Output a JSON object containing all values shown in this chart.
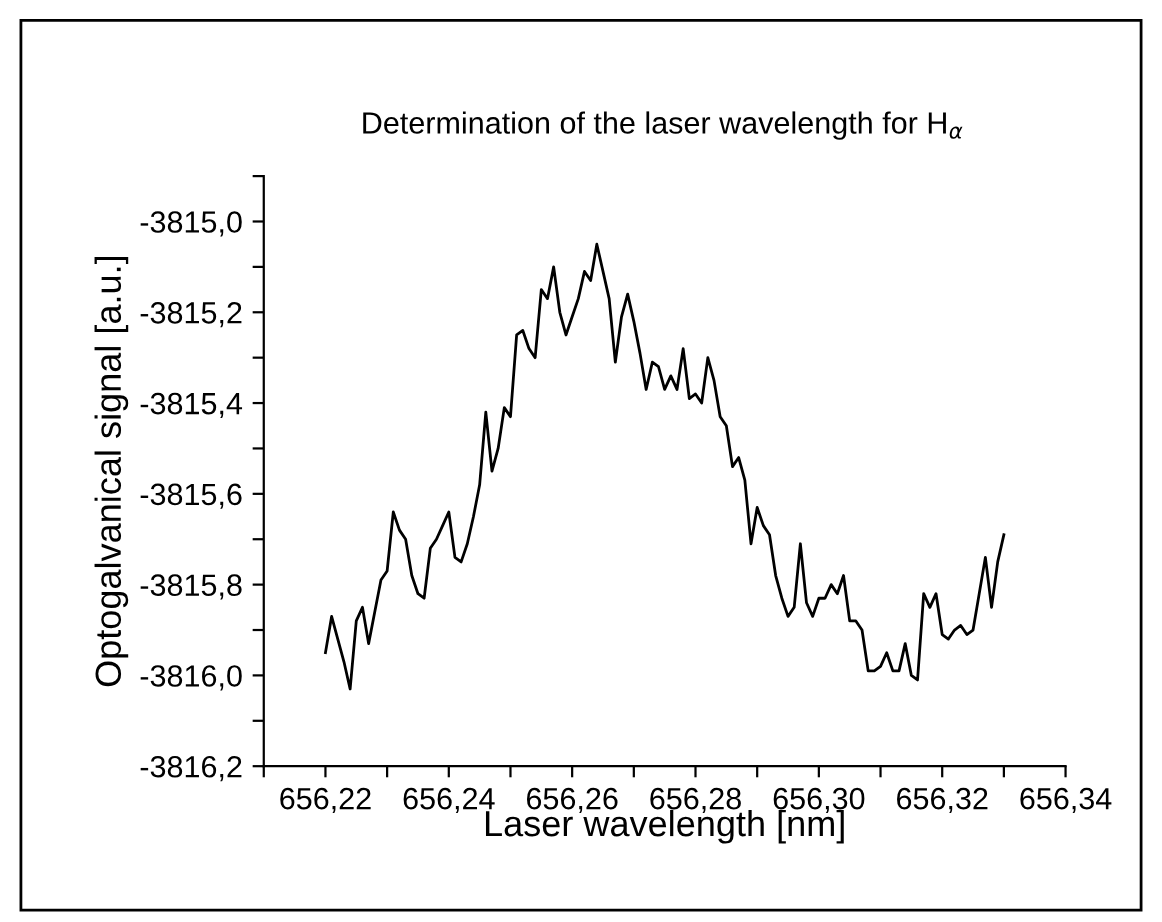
{
  "chart_data": {
    "type": "line",
    "title": "Determination of the laser wavelength for H$_{α}$",
    "xlabel": "Laser wavelength [nm]",
    "ylabel": "Optogalvanical signal [a.u.]",
    "x": [
      656.22,
      656.221,
      656.222,
      656.223,
      656.224,
      656.225,
      656.226,
      656.227,
      656.228,
      656.229,
      656.23,
      656.231,
      656.232,
      656.233,
      656.234,
      656.235,
      656.236,
      656.237,
      656.238,
      656.239,
      656.24,
      656.241,
      656.242,
      656.243,
      656.244,
      656.245,
      656.246,
      656.247,
      656.248,
      656.249,
      656.25,
      656.251,
      656.252,
      656.253,
      656.254,
      656.255,
      656.256,
      656.257,
      656.258,
      656.259,
      656.26,
      656.261,
      656.262,
      656.263,
      656.264,
      656.265,
      656.266,
      656.267,
      656.268,
      656.269,
      656.27,
      656.271,
      656.272,
      656.273,
      656.274,
      656.275,
      656.276,
      656.277,
      656.278,
      656.279,
      656.28,
      656.281,
      656.282,
      656.283,
      656.284,
      656.285,
      656.286,
      656.287,
      656.288,
      656.289,
      656.29,
      656.291,
      656.292,
      656.293,
      656.294,
      656.295,
      656.296,
      656.297,
      656.298,
      656.299,
      656.3,
      656.301,
      656.302,
      656.303,
      656.304,
      656.305,
      656.306,
      656.307,
      656.308,
      656.309,
      656.31,
      656.311,
      656.312,
      656.313,
      656.314,
      656.315,
      656.316,
      656.317,
      656.318,
      656.319,
      656.32,
      656.321,
      656.322,
      656.323,
      656.324,
      656.325,
      656.326,
      656.327,
      656.328,
      656.329,
      656.33
    ],
    "series": [
      {
        "color": "#000000",
        "values": [
          -3815.95,
          -3815.87,
          -3815.92,
          -3815.97,
          -3816.03,
          -3815.88,
          -3815.85,
          -3815.93,
          -3815.86,
          -3815.79,
          -3815.77,
          -3815.64,
          -3815.68,
          -3815.7,
          -3815.78,
          -3815.82,
          -3815.83,
          -3815.72,
          -3815.7,
          -3815.67,
          -3815.64,
          -3815.74,
          -3815.75,
          -3815.71,
          -3815.65,
          -3815.58,
          -3815.42,
          -3815.55,
          -3815.5,
          -3815.41,
          -3815.43,
          -3815.25,
          -3815.24,
          -3815.28,
          -3815.3,
          -3815.15,
          -3815.17,
          -3815.1,
          -3815.2,
          -3815.25,
          -3815.21,
          -3815.17,
          -3815.11,
          -3815.13,
          -3815.05,
          -3815.11,
          -3815.17,
          -3815.31,
          -3815.21,
          -3815.16,
          -3815.22,
          -3815.29,
          -3815.37,
          -3815.31,
          -3815.32,
          -3815.37,
          -3815.34,
          -3815.37,
          -3815.28,
          -3815.39,
          -3815.38,
          -3815.4,
          -3815.3,
          -3815.35,
          -3815.43,
          -3815.45,
          -3815.54,
          -3815.52,
          -3815.57,
          -3815.71,
          -3815.63,
          -3815.67,
          -3815.69,
          -3815.78,
          -3815.83,
          -3815.87,
          -3815.85,
          -3815.71,
          -3815.84,
          -3815.87,
          -3815.83,
          -3815.83,
          -3815.8,
          -3815.82,
          -3815.78,
          -3815.88,
          -3815.88,
          -3815.9,
          -3815.99,
          -3815.99,
          -3815.98,
          -3815.95,
          -3815.99,
          -3815.99,
          -3815.93,
          -3816.0,
          -3816.01,
          -3815.82,
          -3815.85,
          -3815.82,
          -3815.91,
          -3815.92,
          -3815.9,
          -3815.89,
          -3815.91,
          -3815.9,
          -3815.82,
          -3815.74,
          -3815.85,
          -3815.75,
          -3815.69
        ]
      }
    ],
    "xlim": [
      656.21,
      656.34
    ],
    "xticks": [
      {
        "value": 656.21,
        "label": null
      },
      {
        "value": 656.22,
        "label": "656,22"
      },
      {
        "value": 656.23,
        "label": null
      },
      {
        "value": 656.24,
        "label": "656,24"
      },
      {
        "value": 656.25,
        "label": null
      },
      {
        "value": 656.26,
        "label": "656,26"
      },
      {
        "value": 656.27,
        "label": null
      },
      {
        "value": 656.28,
        "label": "656,28"
      },
      {
        "value": 656.29,
        "label": null
      },
      {
        "value": 656.3,
        "label": "656,30"
      },
      {
        "value": 656.31,
        "label": null
      },
      {
        "value": 656.32,
        "label": "656,32"
      },
      {
        "value": 656.33,
        "label": null
      },
      {
        "value": 656.34,
        "label": "656,34"
      }
    ],
    "ylim": [
      -3816.2,
      -3814.9
    ],
    "yticks": [
      {
        "value": -3816.2,
        "label": "-3816,2"
      },
      {
        "value": -3816.1,
        "label": null
      },
      {
        "value": -3816.0,
        "label": "-3816,0"
      },
      {
        "value": -3815.9,
        "label": null
      },
      {
        "value": -3815.8,
        "label": "-3815,8"
      },
      {
        "value": -3815.7,
        "label": null
      },
      {
        "value": -3815.6,
        "label": "-3815,6"
      },
      {
        "value": -3815.5,
        "label": null
      },
      {
        "value": -3815.4,
        "label": "-3815,4"
      },
      {
        "value": -3815.3,
        "label": null
      },
      {
        "value": -3815.2,
        "label": "-3815,2"
      },
      {
        "value": -3815.1,
        "label": null
      },
      {
        "value": -3815.0,
        "label": "-3815,0"
      },
      {
        "value": -3814.9,
        "label": null
      }
    ],
    "grid": false,
    "legend": false,
    "marker": "none",
    "line_style": "solid"
  }
}
